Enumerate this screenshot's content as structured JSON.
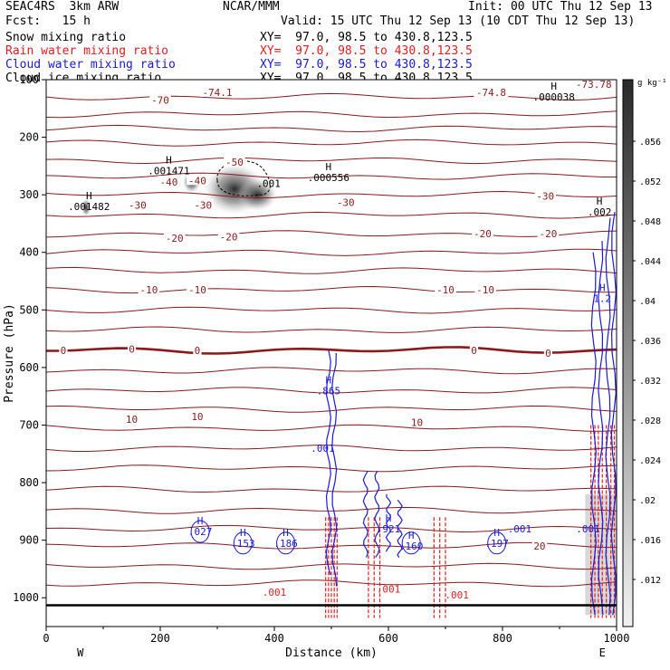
{
  "header": {
    "model": "SEAC4RS  3km ARW",
    "org": "NCAR/MMM",
    "init": "Init: 00 UTC Thu 12 Sep 13",
    "fcst": "Fcst:   15 h",
    "valid": "Valid: 15 UTC Thu 12 Sep 13 (10 CDT Thu 12 Sep 13)"
  },
  "legend": [
    {
      "label": "Snow mixing ratio",
      "xy": "XY=  97.0, 98.5 to 430.8,123.5",
      "color": "#000000"
    },
    {
      "label": "Rain water mixing ratio",
      "xy": "XY=  97.0, 98.5 to 430.8,123.5",
      "color": "#e02020"
    },
    {
      "label": "Cloud water mixing ratio",
      "xy": "XY=  97.0, 98.5 to 430.8,123.5",
      "color": "#1a1ad8"
    },
    {
      "label": "Cloud ice mixing ratio",
      "xy": "XY=  97.0, 98.5 to 430.8,123.5",
      "color": "#000000"
    }
  ],
  "chart_data": {
    "type": "contour",
    "xlabel": "Distance (km)",
    "ylabel": "Pressure (hPa)",
    "xlim": [
      0,
      1000
    ],
    "ylim": [
      1050,
      100
    ],
    "xticks": [
      "0",
      "200",
      "400",
      "600",
      "800",
      "1000"
    ],
    "yticks": [
      "100",
      "200",
      "300",
      "400",
      "500",
      "600",
      "700",
      "800",
      "900",
      "1000"
    ],
    "left_end_label": "W",
    "right_end_label": "E",
    "colorbar": {
      "units": "g kg⁻¹",
      "ticks": [
        ".056",
        ".052",
        ".048",
        ".044",
        ".04",
        ".036",
        ".032",
        ".028",
        ".024",
        ".02",
        ".016",
        ".012"
      ]
    },
    "isotherm_labels": [
      {
        "text": "-70",
        "x": 200,
        "p": 135
      },
      {
        "text": "-74.1",
        "x": 300,
        "p": 122
      },
      {
        "text": "-74.8",
        "x": 780,
        "p": 122
      },
      {
        "text": "-73.78",
        "x": 960,
        "p": 108
      },
      {
        "text": "-50",
        "x": 330,
        "p": 243
      },
      {
        "text": "-40",
        "x": 215,
        "p": 278
      },
      {
        "text": "-40",
        "x": 265,
        "p": 275
      },
      {
        "text": "-30",
        "x": 160,
        "p": 318
      },
      {
        "text": "-30",
        "x": 275,
        "p": 318
      },
      {
        "text": "-30",
        "x": 525,
        "p": 313
      },
      {
        "text": "-30",
        "x": 875,
        "p": 302
      },
      {
        "text": "-20",
        "x": 225,
        "p": 375
      },
      {
        "text": "-20",
        "x": 320,
        "p": 373
      },
      {
        "text": "-20",
        "x": 765,
        "p": 367
      },
      {
        "text": "-20",
        "x": 880,
        "p": 367
      },
      {
        "text": "-10",
        "x": 180,
        "p": 465
      },
      {
        "text": "-10",
        "x": 265,
        "p": 465
      },
      {
        "text": "-10",
        "x": 700,
        "p": 465
      },
      {
        "text": "-10",
        "x": 770,
        "p": 465
      },
      {
        "text": "0",
        "x": 30,
        "p": 570
      },
      {
        "text": "0",
        "x": 150,
        "p": 568
      },
      {
        "text": "0",
        "x": 265,
        "p": 570
      },
      {
        "text": "0",
        "x": 750,
        "p": 570
      },
      {
        "text": "0",
        "x": 880,
        "p": 575
      },
      {
        "text": "10",
        "x": 150,
        "p": 690
      },
      {
        "text": "10",
        "x": 265,
        "p": 685
      },
      {
        "text": "10",
        "x": 650,
        "p": 695
      },
      {
        "text": "20",
        "x": 865,
        "p": 910
      }
    ],
    "extrema_labels": [
      {
        "mark": "H",
        "value": ".001471",
        "x": 215,
        "p": 258,
        "color": "#000000"
      },
      {
        "mark": "H",
        "value": ".000556",
        "x": 495,
        "p": 270,
        "color": "#000000"
      },
      {
        "mark": "H",
        "value": ".001482",
        "x": 75,
        "p": 320,
        "color": "#000000"
      },
      {
        "mark": "H",
        "value": ".000038",
        "x": 890,
        "p": 130,
        "color": "#000000"
      },
      {
        "mark": "H",
        "value": ".002",
        "x": 970,
        "p": 330,
        "color": "#000000"
      },
      {
        "mark": "",
        "value": ".001",
        "x": 390,
        "p": 280,
        "color": "#000000"
      },
      {
        "mark": "H",
        "value": ".865",
        "x": 495,
        "p": 640,
        "color": "#1a1ad8"
      },
      {
        "mark": "H",
        "value": ".921",
        "x": 600,
        "p": 880,
        "color": "#1a1ad8"
      },
      {
        "mark": "H",
        "value": ".197",
        "x": 790,
        "p": 905,
        "color": "#1a1ad8"
      },
      {
        "mark": "H",
        "value": ".186",
        "x": 420,
        "p": 905,
        "color": "#1a1ad8"
      },
      {
        "mark": "H",
        "value": ".153",
        "x": 345,
        "p": 905,
        "color": "#1a1ad8"
      },
      {
        "mark": "H",
        "value": ".160",
        "x": 640,
        "p": 910,
        "color": "#1a1ad8"
      },
      {
        "mark": "H",
        "value": ".027",
        "x": 270,
        "p": 885,
        "color": "#1a1ad8"
      },
      {
        "mark": "H",
        "value": "1.2",
        "x": 975,
        "p": 480,
        "color": "#1a1ad8"
      },
      {
        "mark": "",
        "value": ".001",
        "x": 485,
        "p": 740,
        "color": "#1a1ad8"
      },
      {
        "mark": "",
        "value": ".001",
        "x": 830,
        "p": 880,
        "color": "#1a1ad8"
      },
      {
        "mark": "",
        "value": ".001",
        "x": 950,
        "p": 880,
        "color": "#1a1ad8"
      },
      {
        "mark": "",
        "value": ".001",
        "x": 600,
        "p": 985,
        "color": "#e02020"
      },
      {
        "mark": "",
        "value": ".001",
        "x": 720,
        "p": 995,
        "color": "#e02020"
      },
      {
        "mark": "",
        "value": ".001",
        "x": 400,
        "p": 990,
        "color": "#e02020"
      }
    ]
  }
}
